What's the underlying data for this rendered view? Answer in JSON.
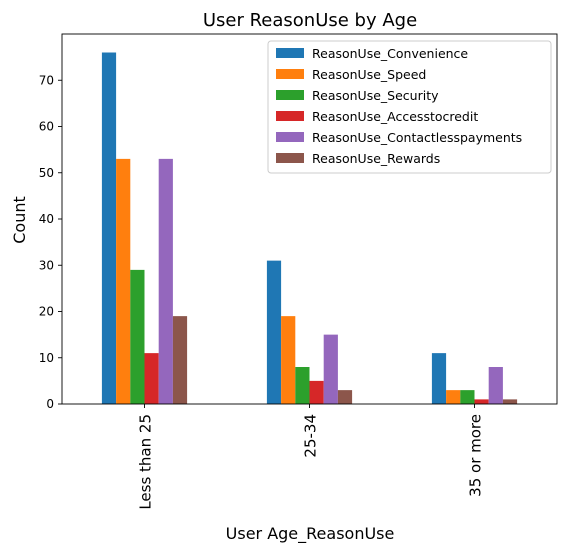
{
  "chart_data": {
    "type": "bar",
    "title": "User ReasonUse by Age",
    "xlabel": "User Age_ReasonUse",
    "ylabel": "Count",
    "categories": [
      "Less than 25",
      "25-34",
      "35 or more"
    ],
    "ylim": [
      0,
      80
    ],
    "yticks": [
      0,
      10,
      20,
      30,
      40,
      50,
      60,
      70
    ],
    "grid": false,
    "legend_position": "top-right",
    "series": [
      {
        "name": "ReasonUse_Convenience",
        "color": "#1f77b4",
        "values": [
          76,
          31,
          11
        ]
      },
      {
        "name": "ReasonUse_Speed",
        "color": "#ff7f0e",
        "values": [
          53,
          19,
          3
        ]
      },
      {
        "name": "ReasonUse_Security",
        "color": "#2ca02c",
        "values": [
          29,
          8,
          3
        ]
      },
      {
        "name": "ReasonUse_Accesstocredit",
        "color": "#d62728",
        "values": [
          11,
          5,
          1
        ]
      },
      {
        "name": "ReasonUse_Contactlesspayments",
        "color": "#9467bd",
        "values": [
          53,
          15,
          8
        ]
      },
      {
        "name": "ReasonUse_Rewards",
        "color": "#8c564b",
        "values": [
          19,
          3,
          1
        ]
      }
    ]
  }
}
